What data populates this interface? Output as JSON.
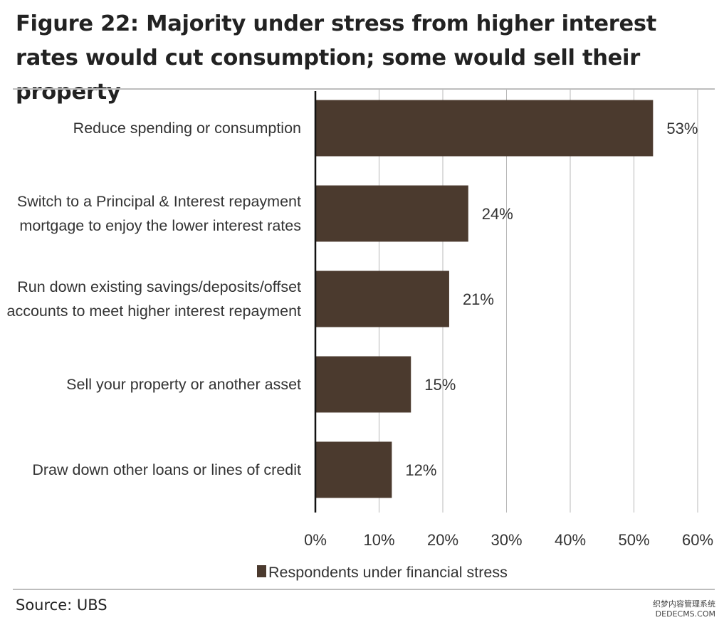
{
  "title": "Figure 22: Majority under stress from higher interest rates would cut consumption; some would sell their property",
  "source": "Source: UBS",
  "watermark": {
    "line1": "织梦内容管理系统",
    "line2": "DEDECMS.COM"
  },
  "chart_data": {
    "type": "bar",
    "orientation": "horizontal",
    "categories": [
      [
        "Reduce spending or consumption"
      ],
      [
        "Switch to a Principal & Interest repayment",
        "mortgage to enjoy the lower interest rates"
      ],
      [
        "Run down existing savings/deposits/offset",
        "accounts to meet higher interest repayment"
      ],
      [
        "Sell your property or another asset"
      ],
      [
        "Draw down other loans or lines of credit"
      ]
    ],
    "series": [
      {
        "name": "Respondents under financial stress",
        "values": [
          53,
          24,
          21,
          15,
          12
        ],
        "color": "#4b3a2e"
      }
    ],
    "value_labels": [
      "53%",
      "24%",
      "21%",
      "15%",
      "12%"
    ],
    "xlim": [
      0,
      60
    ],
    "xticks": [
      0,
      10,
      20,
      30,
      40,
      50,
      60
    ],
    "xtick_labels": [
      "0%",
      "10%",
      "20%",
      "30%",
      "40%",
      "50%",
      "60%"
    ],
    "grid": "vertical",
    "legend_position": "bottom",
    "colors": {
      "bar": "#4b3a2e",
      "grid": "#b8b8b8",
      "axis": "#111111",
      "text": "#333333"
    }
  }
}
